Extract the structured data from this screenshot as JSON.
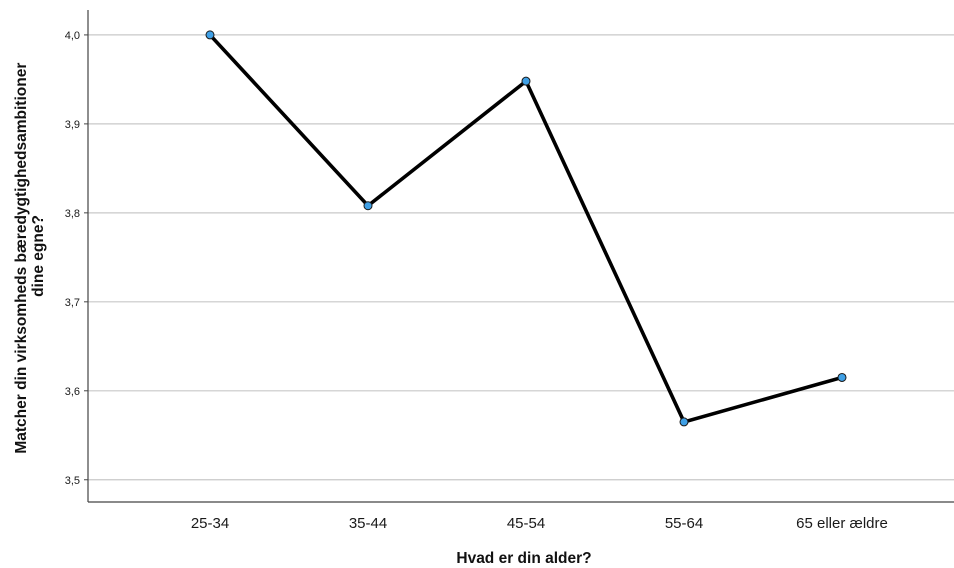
{
  "chart_data": {
    "type": "line",
    "xlabel": "Hvad er din alder?",
    "ylabel_lines": [
      "Matcher din virksomheds bæredygtighedsambitioner",
      "dine egne?"
    ],
    "categories": [
      "25-34",
      "35-44",
      "45-54",
      "55-64",
      "65 eller ældre"
    ],
    "series": [
      {
        "values": [
          4.0,
          3.808,
          3.948,
          3.565,
          3.615
        ]
      }
    ],
    "ylim": [
      3.475,
      4.028
    ],
    "yticks": [
      3.5,
      3.6,
      3.7,
      3.8,
      3.9,
      4.0
    ],
    "ytick_labels": [
      "3,5",
      "3,6",
      "3,7",
      "3,8",
      "3,9",
      "4,0"
    ],
    "grid": true,
    "legend": "none",
    "colors": {
      "line": "#000000",
      "marker_fill": "#3fa0e6",
      "marker_stroke": "#1a1a1a",
      "grid": "#c8c8c8",
      "axis": "#444444"
    }
  }
}
